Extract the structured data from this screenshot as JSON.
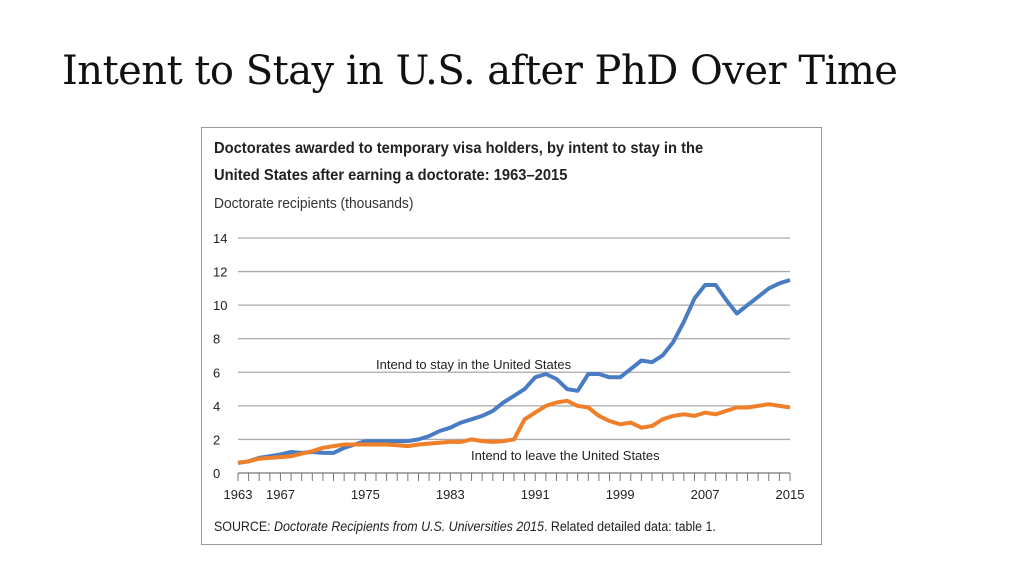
{
  "slide": {
    "title": "Intent to Stay in U.S. after PhD Over Time"
  },
  "chart_data": {
    "type": "line",
    "title": "Doctorates awarded to temporary visa holders, by intent to stay in the United States after earning a doctorate: 1963–2015",
    "title_lines": [
      "Doctorates awarded to temporary visa holders, by intent to stay in the",
      "United States after earning a doctorate: 1963–2015"
    ],
    "ylabel": "Doctorate recipients (thousands)",
    "source_prefix": "SOURCE: ",
    "source_italic": "Doctorate Recipients from U.S. Universities 2015",
    "source_suffix": ". Related detailed data: table 1.",
    "xlim": [
      1963,
      2015
    ],
    "ylim": [
      0,
      14
    ],
    "yticks": [
      "0",
      "2",
      "4",
      "6",
      "8",
      "10",
      "12",
      "14"
    ],
    "xticks": [
      "1963",
      "1967",
      "1975",
      "1983",
      "1991",
      "1999",
      "2007",
      "2015"
    ],
    "grid": true,
    "x": [
      1963,
      1964,
      1965,
      1966,
      1967,
      1968,
      1969,
      1970,
      1971,
      1972,
      1973,
      1974,
      1975,
      1976,
      1977,
      1978,
      1979,
      1980,
      1981,
      1982,
      1983,
      1984,
      1985,
      1986,
      1987,
      1988,
      1989,
      1990,
      1991,
      1992,
      1993,
      1994,
      1995,
      1996,
      1997,
      1998,
      1999,
      2000,
      2001,
      2002,
      2003,
      2004,
      2005,
      2006,
      2007,
      2008,
      2009,
      2010,
      2011,
      2012,
      2013,
      2014,
      2015
    ],
    "series": [
      {
        "name": "Intend to stay in the United States",
        "color": "#4a7cc4",
        "values": [
          0.6,
          0.7,
          0.9,
          1.0,
          1.1,
          1.25,
          1.2,
          1.25,
          1.2,
          1.2,
          1.5,
          1.7,
          1.9,
          1.9,
          1.9,
          1.9,
          1.9,
          2.0,
          2.2,
          2.5,
          2.7,
          3.0,
          3.2,
          3.4,
          3.7,
          4.2,
          4.6,
          5.0,
          5.7,
          5.9,
          5.6,
          5.0,
          4.9,
          5.9,
          5.9,
          5.7,
          5.7,
          6.2,
          6.7,
          6.6,
          7.0,
          7.8,
          9.0,
          10.4,
          11.2,
          11.2,
          10.3,
          9.5,
          10.0,
          10.5,
          11.0,
          11.3,
          11.5
        ]
      },
      {
        "name": "Intend to leave the United States",
        "color": "#f07f2a",
        "values": [
          0.6,
          0.7,
          0.85,
          0.9,
          0.95,
          1.0,
          1.15,
          1.3,
          1.5,
          1.6,
          1.7,
          1.7,
          1.7,
          1.7,
          1.7,
          1.65,
          1.6,
          1.7,
          1.75,
          1.8,
          1.85,
          1.85,
          2.0,
          1.9,
          1.85,
          1.9,
          2.0,
          3.2,
          3.6,
          4.0,
          4.2,
          4.3,
          4.0,
          3.9,
          3.4,
          3.1,
          2.9,
          3.0,
          2.7,
          2.8,
          3.2,
          3.4,
          3.5,
          3.4,
          3.6,
          3.5,
          3.7,
          3.9,
          3.9,
          4.0,
          4.1,
          4.0,
          3.9
        ]
      }
    ]
  }
}
